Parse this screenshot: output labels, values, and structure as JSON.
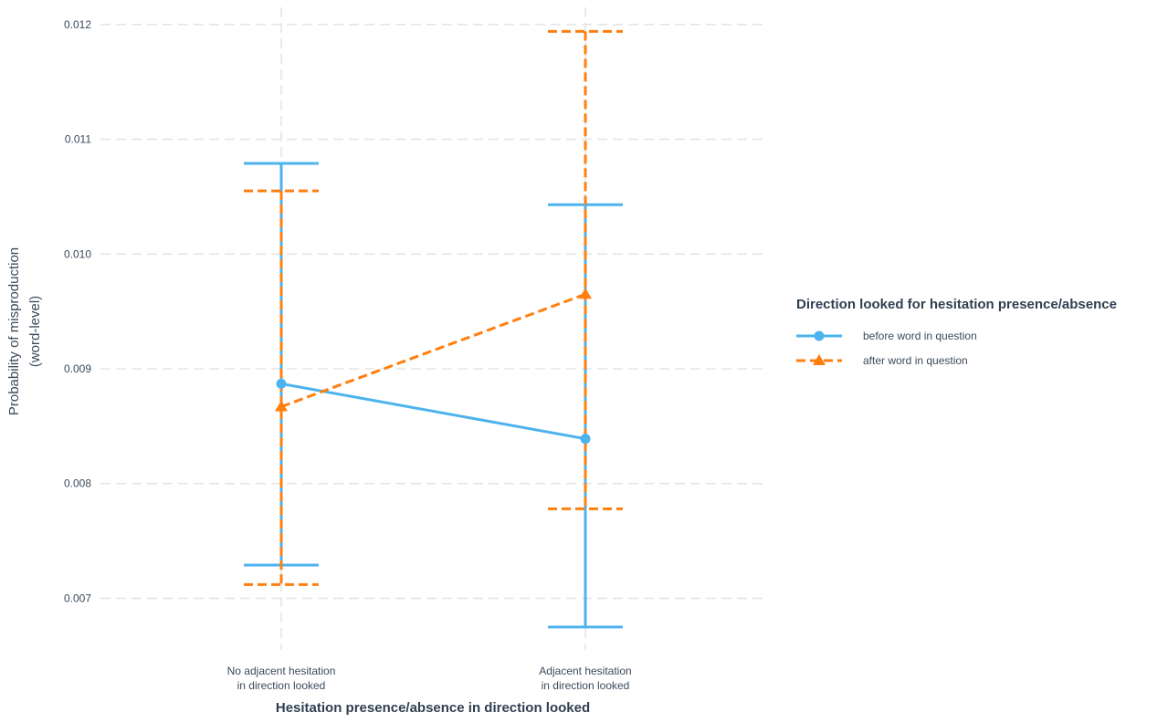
{
  "chart_data": {
    "type": "line",
    "title": "",
    "xlabel": "Hesitation presence/absence in direction looked",
    "ylabel_lines": [
      "Probability of misproduction",
      "(word-level)"
    ],
    "categories": [
      [
        "No adjacent hesitation",
        "in direction looked"
      ],
      [
        "Adjacent hesitation",
        "in direction looked"
      ]
    ],
    "ylim": [
      0.00655,
      0.01215
    ],
    "yticks": [
      0.007,
      0.008,
      0.009,
      0.01,
      0.011,
      0.012
    ],
    "ytick_labels": [
      "0.007",
      "0.008",
      "0.009",
      "0.010",
      "0.011",
      "0.012"
    ],
    "grid": true,
    "legend": {
      "title": "Direction looked for hesitation presence/absence",
      "position": "right"
    },
    "series": [
      {
        "name": "before word in question",
        "color": "#4db3ee",
        "line": "solid",
        "marker": "circle",
        "values": [
          0.00887,
          0.00839
        ],
        "lower": [
          0.00729,
          0.00675
        ],
        "upper": [
          0.01079,
          0.01043
        ]
      },
      {
        "name": "after word in question",
        "color": "#ff7f0e",
        "line": "dashed",
        "marker": "triangle",
        "values": [
          0.00867,
          0.00965
        ],
        "lower": [
          0.00712,
          0.00778
        ],
        "upper": [
          0.01055,
          0.01194
        ]
      }
    ]
  }
}
